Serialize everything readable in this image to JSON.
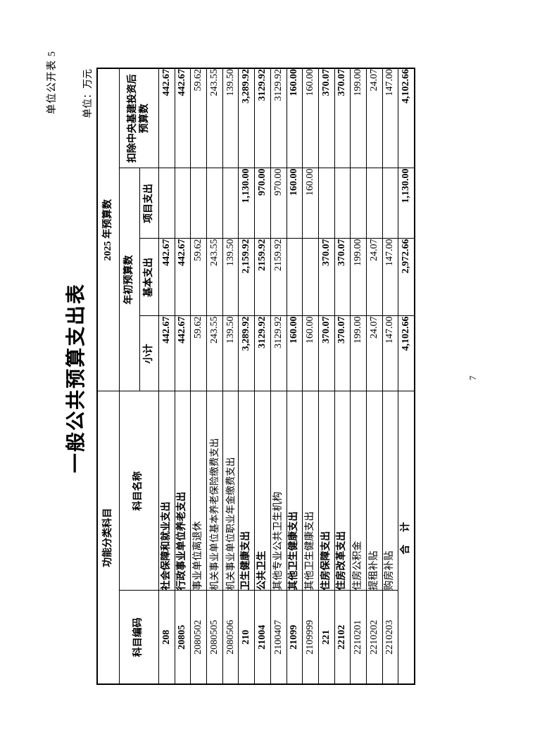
{
  "page": {
    "doc_label": "单位公开表 5",
    "unit_label": "单位：万元",
    "title": "一般公共预算支出表",
    "page_number": "7"
  },
  "table": {
    "headers": {
      "func_group": "功能分类科目",
      "code": "科目编码",
      "name": "科目名称",
      "year_group": "2025 年预算数",
      "initial_group": "年初预算数",
      "subtotal": "小计",
      "basic": "基本支出",
      "project": "项目支出",
      "after_deduction_line1": "扣除中央基建投资后",
      "after_deduction_line2": "预算数"
    },
    "rows": [
      {
        "code": "208",
        "name": "社会保障和就业支出",
        "indent": 0,
        "bold": true,
        "subtotal": "442.67",
        "basic": "442.67",
        "project": "",
        "after": "442.67"
      },
      {
        "code": "20805",
        "name": "行政事业单位养老支出",
        "indent": 1,
        "bold": true,
        "subtotal": "442.67",
        "basic": "442.67",
        "project": "",
        "after": "442.67"
      },
      {
        "code": "2080502",
        "name": "事业单位离退休",
        "indent": 2,
        "bold": false,
        "subtotal": "59.62",
        "basic": "59.62",
        "project": "",
        "after": "59.62"
      },
      {
        "code": "2080505",
        "name": "机关事业单位基本养老保险缴费支出",
        "indent": 2,
        "bold": false,
        "subtotal": "243.55",
        "basic": "243.55",
        "project": "",
        "after": "243.55"
      },
      {
        "code": "2080506",
        "name": "机关事业单位职业年金缴费支出",
        "indent": 2,
        "bold": false,
        "subtotal": "139.50",
        "basic": "139.50",
        "project": "",
        "after": "139.50"
      },
      {
        "code": "210",
        "name": "卫生健康支出",
        "indent": 0,
        "bold": true,
        "subtotal": "3,289.92",
        "basic": "2,159.92",
        "project": "1,130.00",
        "after": "3,289.92"
      },
      {
        "code": "21004",
        "name": "公共卫生",
        "indent": 1,
        "bold": true,
        "subtotal": "3129.92",
        "basic": "2159.92",
        "project": "970.00",
        "after": "3129.92"
      },
      {
        "code": "2100407",
        "name": "其他专业公共卫生机构",
        "indent": 2,
        "bold": false,
        "subtotal": "3129.92",
        "basic": "2159.92",
        "project": "970.00",
        "after": "3129.92"
      },
      {
        "code": "21099",
        "name": "其他卫生健康支出",
        "indent": 1,
        "bold": true,
        "subtotal": "160.00",
        "basic": "",
        "project": "160.00",
        "after": "160.00"
      },
      {
        "code": "2109999",
        "name": "其他卫生健康支出",
        "indent": 2,
        "bold": false,
        "subtotal": "160.00",
        "basic": "",
        "project": "160.00",
        "after": "160.00"
      },
      {
        "code": "221",
        "name": "住房保障支出",
        "indent": 0,
        "bold": true,
        "subtotal": "370.07",
        "basic": "370.07",
        "project": "",
        "after": "370.07"
      },
      {
        "code": "22102",
        "name": "住房改革支出",
        "indent": 1,
        "bold": true,
        "subtotal": "370.07",
        "basic": "370.07",
        "project": "",
        "after": "370.07"
      },
      {
        "code": "2210201",
        "name": "住房公积金",
        "indent": 2,
        "bold": false,
        "subtotal": "199.00",
        "basic": "199.00",
        "project": "",
        "after": "199.00"
      },
      {
        "code": "2210202",
        "name": "提租补贴",
        "indent": 2,
        "bold": false,
        "subtotal": "24.07",
        "basic": "24.07",
        "project": "",
        "after": "24.07"
      },
      {
        "code": "2210203",
        "name": "购房补贴",
        "indent": 2,
        "bold": false,
        "subtotal": "147.00",
        "basic": "147.00",
        "project": "",
        "after": "147.00"
      }
    ],
    "total_row": {
      "label": "合　计",
      "bold": true,
      "subtotal": "4,102.66",
      "basic": "2,972.66",
      "project": "1,130.00",
      "after": "4,102.66"
    }
  }
}
